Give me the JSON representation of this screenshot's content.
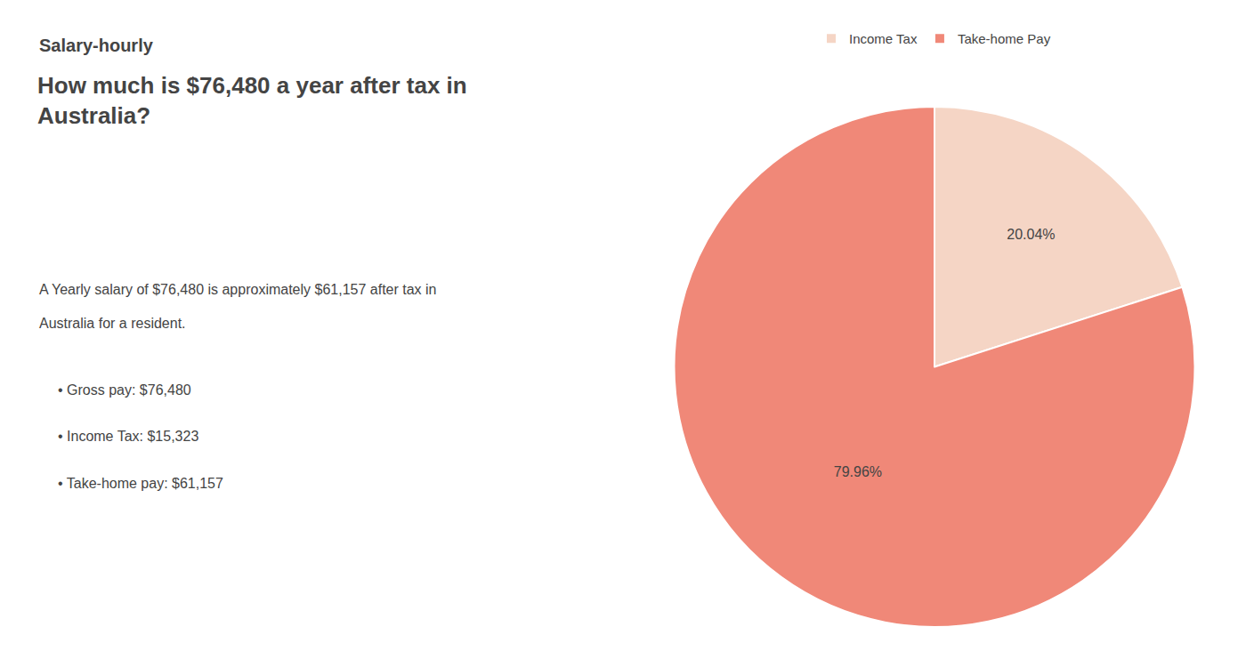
{
  "chart_data": {
    "type": "pie",
    "title": "How much is $76,480 a year after tax in\nAustralia?",
    "annotations": [
      "Salary-hourly",
      "A Yearly salary of $76,480 is approximately $61,157 after tax in",
      "Australia for a resident.",
      "• Gross pay: $76,480",
      "• Income Tax: $15,323",
      "• Take-home pay: $61,157"
    ],
    "categories": [
      "Income Tax",
      "Take-home Pay"
    ],
    "values": [
      20.04,
      79.96
    ],
    "value_labels": [
      "20.04%",
      "79.96%"
    ],
    "colors": [
      "#f5d5c5",
      "#f08878"
    ],
    "data_labels": true,
    "legend": "top"
  }
}
